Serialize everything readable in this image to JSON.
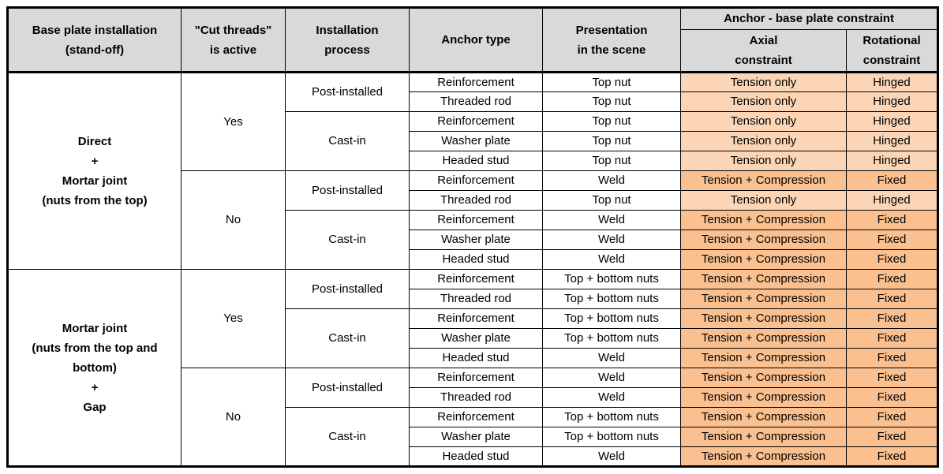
{
  "table": {
    "colors": {
      "header_bg": "#D9D9D9",
      "light_orange": "#FBD5B5",
      "dark_orange": "#FAC08F",
      "border": "#000000",
      "row_bg": "#FFFFFF",
      "text": "#000000"
    },
    "header": {
      "col1": [
        "Base plate installation",
        "(stand-off)"
      ],
      "col2": [
        "\"Cut threads\"",
        "is active"
      ],
      "col3": [
        "Installation",
        "process"
      ],
      "col4": [
        "Anchor type"
      ],
      "col5": [
        "Presentation",
        "in the scene"
      ],
      "group": "Anchor - base plate constraint",
      "sub_axial": [
        "Axial",
        "constraint"
      ],
      "sub_rotational": [
        "Rotational",
        "constraint"
      ]
    },
    "rows": [
      {
        "cells": [
          {
            "lines": [
              "Direct",
              "+",
              "Mortar joint",
              "(nuts from the top)"
            ],
            "rowspan": 10
          },
          {
            "text": "Yes",
            "rowspan": 5
          },
          {
            "text": "Post-installed",
            "rowspan": 2
          },
          {
            "text": "Reinforcement"
          },
          {
            "text": "Top nut"
          },
          {
            "text": "Tension only",
            "bg": "light"
          },
          {
            "text": "Hinged",
            "bg": "light"
          }
        ]
      },
      {
        "cells": [
          {
            "text": "Threaded rod"
          },
          {
            "text": "Top nut"
          },
          {
            "text": "Tension only",
            "bg": "light"
          },
          {
            "text": "Hinged",
            "bg": "light"
          }
        ]
      },
      {
        "cells": [
          {
            "text": "Cast-in",
            "rowspan": 3
          },
          {
            "text": "Reinforcement"
          },
          {
            "text": "Top nut"
          },
          {
            "text": "Tension only",
            "bg": "light"
          },
          {
            "text": "Hinged",
            "bg": "light"
          }
        ]
      },
      {
        "cells": [
          {
            "text": "Washer plate"
          },
          {
            "text": "Top nut"
          },
          {
            "text": "Tension only",
            "bg": "light"
          },
          {
            "text": "Hinged",
            "bg": "light"
          }
        ]
      },
      {
        "cells": [
          {
            "text": "Headed stud"
          },
          {
            "text": "Top nut"
          },
          {
            "text": "Tension only",
            "bg": "light"
          },
          {
            "text": "Hinged",
            "bg": "light"
          }
        ]
      },
      {
        "cells": [
          {
            "text": "No",
            "rowspan": 5
          },
          {
            "text": "Post-installed",
            "rowspan": 2
          },
          {
            "text": "Reinforcement"
          },
          {
            "text": "Weld"
          },
          {
            "text": "Tension + Compression",
            "bg": "dark"
          },
          {
            "text": "Fixed",
            "bg": "dark"
          }
        ]
      },
      {
        "cells": [
          {
            "text": "Threaded rod"
          },
          {
            "text": "Top nut"
          },
          {
            "text": "Tension only",
            "bg": "light"
          },
          {
            "text": "Hinged",
            "bg": "light"
          }
        ]
      },
      {
        "cells": [
          {
            "text": "Cast-in",
            "rowspan": 3
          },
          {
            "text": "Reinforcement"
          },
          {
            "text": "Weld"
          },
          {
            "text": "Tension + Compression",
            "bg": "dark"
          },
          {
            "text": "Fixed",
            "bg": "dark"
          }
        ]
      },
      {
        "cells": [
          {
            "text": "Washer plate"
          },
          {
            "text": "Weld"
          },
          {
            "text": "Tension + Compression",
            "bg": "dark"
          },
          {
            "text": "Fixed",
            "bg": "dark"
          }
        ]
      },
      {
        "cells": [
          {
            "text": "Headed stud"
          },
          {
            "text": "Weld"
          },
          {
            "text": "Tension + Compression",
            "bg": "dark"
          },
          {
            "text": "Fixed",
            "bg": "dark"
          }
        ]
      },
      {
        "cells": [
          {
            "lines": [
              "Mortar joint",
              "(nuts from the top and bottom)",
              "+",
              "Gap"
            ],
            "rowspan": 10
          },
          {
            "text": "Yes",
            "rowspan": 5
          },
          {
            "text": "Post-installed",
            "rowspan": 2
          },
          {
            "text": "Reinforcement"
          },
          {
            "text": "Top + bottom nuts"
          },
          {
            "text": "Tension + Compression",
            "bg": "dark"
          },
          {
            "text": "Fixed",
            "bg": "dark"
          }
        ]
      },
      {
        "cells": [
          {
            "text": "Threaded rod"
          },
          {
            "text": "Top + bottom nuts"
          },
          {
            "text": "Tension + Compression",
            "bg": "dark"
          },
          {
            "text": "Fixed",
            "bg": "dark"
          }
        ]
      },
      {
        "cells": [
          {
            "text": "Cast-in",
            "rowspan": 3
          },
          {
            "text": "Reinforcement"
          },
          {
            "text": "Top + bottom nuts"
          },
          {
            "text": "Tension + Compression",
            "bg": "dark"
          },
          {
            "text": "Fixed",
            "bg": "dark"
          }
        ]
      },
      {
        "cells": [
          {
            "text": "Washer plate"
          },
          {
            "text": "Top + bottom nuts"
          },
          {
            "text": "Tension + Compression",
            "bg": "dark"
          },
          {
            "text": "Fixed",
            "bg": "dark"
          }
        ]
      },
      {
        "cells": [
          {
            "text": "Headed stud"
          },
          {
            "text": "Weld"
          },
          {
            "text": "Tension + Compression",
            "bg": "dark"
          },
          {
            "text": "Fixed",
            "bg": "dark"
          }
        ]
      },
      {
        "cells": [
          {
            "text": "No",
            "rowspan": 5
          },
          {
            "text": "Post-installed",
            "rowspan": 2
          },
          {
            "text": "Reinforcement"
          },
          {
            "text": "Weld"
          },
          {
            "text": "Tension + Compression",
            "bg": "dark"
          },
          {
            "text": "Fixed",
            "bg": "dark"
          }
        ]
      },
      {
        "cells": [
          {
            "text": "Threaded rod"
          },
          {
            "text": "Weld"
          },
          {
            "text": "Tension + Compression",
            "bg": "dark"
          },
          {
            "text": "Fixed",
            "bg": "dark"
          }
        ]
      },
      {
        "cells": [
          {
            "text": "Cast-in",
            "rowspan": 3
          },
          {
            "text": "Reinforcement"
          },
          {
            "text": "Top + bottom nuts"
          },
          {
            "text": "Tension + Compression",
            "bg": "dark"
          },
          {
            "text": "Fixed",
            "bg": "dark"
          }
        ]
      },
      {
        "cells": [
          {
            "text": "Washer plate"
          },
          {
            "text": "Top + bottom nuts"
          },
          {
            "text": "Tension + Compression",
            "bg": "dark"
          },
          {
            "text": "Fixed",
            "bg": "dark"
          }
        ]
      },
      {
        "cells": [
          {
            "text": "Headed stud"
          },
          {
            "text": "Weld"
          },
          {
            "text": "Tension + Compression",
            "bg": "dark"
          },
          {
            "text": "Fixed",
            "bg": "dark"
          }
        ]
      }
    ]
  }
}
